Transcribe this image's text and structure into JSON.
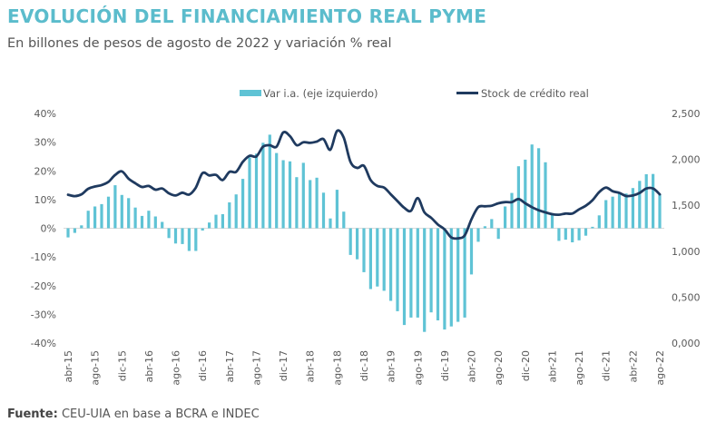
{
  "title": "EVOLUCIÓN DEL FINANCIAMIENTO REAL PYME",
  "subtitle": "En billones de pesos de agosto de 2022 y variación % real",
  "source": {
    "label": "Fuente:",
    "text": "CEU-UIA en base a BCRA e INDEC"
  },
  "colors": {
    "title": "#5bbccc",
    "bars": "#5fc3d5",
    "line": "#1f3a5f"
  },
  "chart_data": {
    "type": "bar+line",
    "frequency": "monthly",
    "x_start": "abr-15",
    "x_end": "ago-22",
    "x_tick_labels": [
      "abr-15",
      "ago-15",
      "dic-15",
      "abr-16",
      "ago-16",
      "dic-16",
      "abr-17",
      "ago-17",
      "dic-17",
      "abr-18",
      "ago-18",
      "dic-18",
      "abr-19",
      "ago-19",
      "dic-19",
      "abr-20",
      "ago-20",
      "dic-20",
      "abr-21",
      "ago-21",
      "dic-21",
      "abr-22",
      "ago-22"
    ],
    "y_left": {
      "range": [
        -40,
        40
      ],
      "unit": "%",
      "tick_labels": [
        "40%",
        "30%",
        "20%",
        "10%",
        "0%",
        "-10%",
        "-20%",
        "-30%",
        "-40%"
      ]
    },
    "y_right": {
      "range": [
        0,
        2500
      ],
      "tick_labels": [
        "2,500",
        "2,000",
        "1,500",
        "1,000",
        "0,500",
        "0,000"
      ]
    },
    "grid": false,
    "legend_position": "top",
    "series": [
      {
        "name": "Var i.a. (eje izquierdo)",
        "type": "bar",
        "axis": "left",
        "values": [
          -3.2,
          -1.6,
          1,
          6.1,
          7.6,
          8.4,
          11,
          15,
          11.6,
          10.5,
          7.2,
          4.3,
          6.1,
          4.1,
          2.2,
          -3.4,
          -5.3,
          -5.5,
          -7.9,
          -7.9,
          -0.8,
          2,
          4.7,
          4.9,
          9,
          11.8,
          17.2,
          24.7,
          26,
          29.8,
          32.6,
          26.2,
          23.7,
          23.3,
          17.8,
          22.8,
          16.8,
          17.6,
          12.4,
          3.4,
          13.4,
          5.8,
          -9.3,
          -10.8,
          -15.3,
          -21.2,
          -20.3,
          -21.8,
          -25.3,
          -28.9,
          -33.7,
          -31.1,
          -31.1,
          -36.1,
          -29.3,
          -32.1,
          -35.3,
          -34.2,
          -32.6,
          -31.1,
          -16.1,
          -4.7,
          0.7,
          3.2,
          -3.7,
          7.6,
          12.3,
          21.6,
          23.9,
          29.2,
          27.9,
          23,
          4.9,
          -4.4,
          -4,
          -4.9,
          -4.2,
          -2.6,
          0.5,
          4.5,
          9.8,
          11,
          12.1,
          12.1,
          14,
          16.5,
          18.8,
          18.9,
          11.9
        ]
      },
      {
        "name": "Stock de crédito real",
        "type": "line",
        "axis": "right",
        "values": [
          1615,
          1600,
          1620,
          1680,
          1705,
          1720,
          1755,
          1830,
          1870,
          1790,
          1740,
          1700,
          1710,
          1670,
          1683,
          1630,
          1607,
          1637,
          1617,
          1693,
          1851,
          1825,
          1831,
          1775,
          1864,
          1864,
          1973,
          2039,
          2032,
          2138,
          2154,
          2138,
          2293,
          2253,
          2154,
          2187,
          2180,
          2194,
          2220,
          2105,
          2309,
          2236,
          1973,
          1907,
          1930,
          1775,
          1710,
          1693,
          1620,
          1545,
          1472,
          1440,
          1578,
          1423,
          1364,
          1291,
          1238,
          1150,
          1140,
          1173,
          1347,
          1479,
          1489,
          1495,
          1522,
          1535,
          1535,
          1568,
          1522,
          1479,
          1446,
          1423,
          1403,
          1397,
          1410,
          1410,
          1456,
          1495,
          1555,
          1644,
          1693,
          1653,
          1634,
          1601,
          1607,
          1634,
          1683,
          1683,
          1620
        ]
      }
    ]
  }
}
